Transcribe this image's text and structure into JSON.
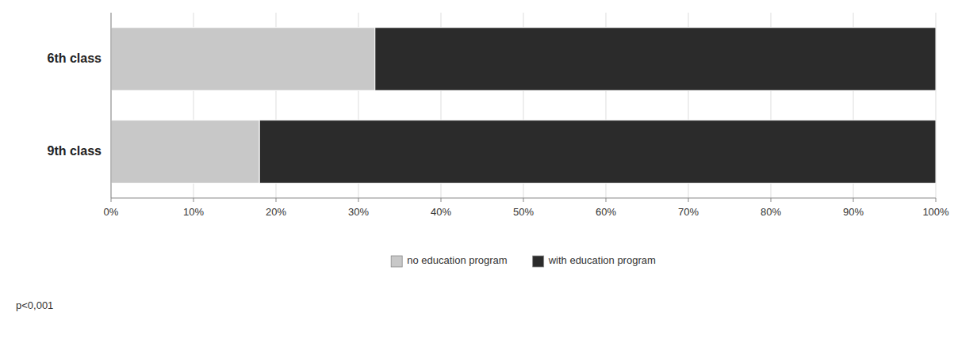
{
  "chart_data": {
    "type": "bar",
    "orientation": "horizontal",
    "stacked": true,
    "categories": [
      "6th class",
      "9th class"
    ],
    "series": [
      {
        "name": "no education program",
        "color": "#c8c8c8",
        "values": [
          32,
          18
        ]
      },
      {
        "name": "with education program",
        "color": "#2b2b2b",
        "values": [
          68,
          82
        ]
      }
    ],
    "xlim": [
      0,
      100
    ],
    "xticks": [
      {
        "value": 0,
        "label": "0%"
      },
      {
        "value": 10,
        "label": "10%"
      },
      {
        "value": 20,
        "label": "20%"
      },
      {
        "value": 30,
        "label": "30%"
      },
      {
        "value": 40,
        "label": "40%"
      },
      {
        "value": 50,
        "label": "50%"
      },
      {
        "value": 60,
        "label": "60%"
      },
      {
        "value": 70,
        "label": "70%"
      },
      {
        "value": 80,
        "label": "80%"
      },
      {
        "value": 90,
        "label": "90%"
      },
      {
        "value": 100,
        "label": "100%"
      }
    ],
    "grid": true,
    "legend": "bottom",
    "annotations": [
      "p<0,001"
    ]
  }
}
